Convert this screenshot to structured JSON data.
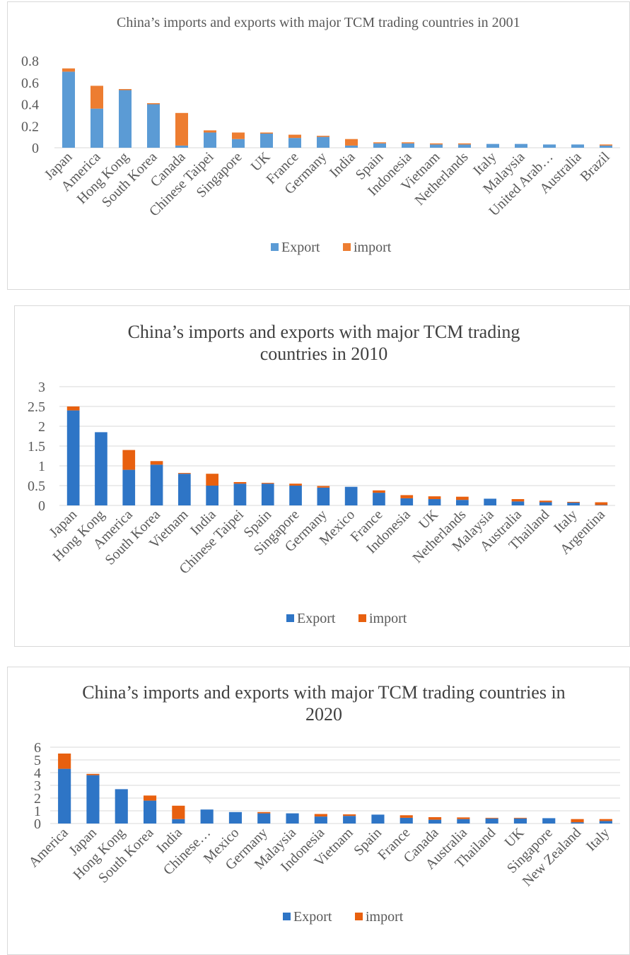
{
  "chart_data": [
    {
      "type": "bar",
      "stacked": true,
      "title": "China’s imports and exports with major TCM trading countries in 2001",
      "categories": [
        "Japan",
        "America",
        "Hong Kong",
        "South Korea",
        "Canada",
        "Chinese Taipei",
        "Singapore",
        "UK",
        "France",
        "Germany",
        "India",
        "Spain",
        "Indonesia",
        "Vietnam",
        "Netherlands",
        "Italy",
        "Malaysia",
        "United Arab…",
        "Australia",
        "Brazil"
      ],
      "series": [
        {
          "name": "Export",
          "color": "#5b9bd5",
          "values": [
            0.7,
            0.36,
            0.53,
            0.4,
            0.02,
            0.14,
            0.08,
            0.13,
            0.09,
            0.1,
            0.02,
            0.04,
            0.04,
            0.03,
            0.03,
            0.035,
            0.035,
            0.03,
            0.03,
            0.02
          ]
        },
        {
          "name": "import",
          "color": "#ed7d31",
          "values": [
            0.03,
            0.21,
            0.01,
            0.01,
            0.3,
            0.02,
            0.06,
            0.01,
            0.03,
            0.01,
            0.06,
            0.01,
            0.01,
            0.01,
            0.01,
            0,
            0,
            0,
            0,
            0.01
          ]
        }
      ],
      "ylim": [
        0,
        0.8
      ],
      "yticks": [
        0,
        0.2,
        0.4,
        0.6,
        0.8
      ],
      "grid": false,
      "legend": "bottom"
    },
    {
      "type": "bar",
      "stacked": true,
      "title": "China’s imports and exports with major TCM trading countries in 2010",
      "categories": [
        "Japan",
        "Hong Kong",
        "America",
        "South Korea",
        "Vietnam",
        "India",
        "Chinese Taipei",
        "Spain",
        "Singapore",
        "Germany",
        "Mexico",
        "France",
        "Indonesia",
        "UK",
        "Netherlands",
        "Malaysia",
        "Australia",
        "Thailand",
        "Italy",
        "Argentina"
      ],
      "series": [
        {
          "name": "Export",
          "color": "#2e75c6",
          "values": [
            2.4,
            1.85,
            0.9,
            1.03,
            0.8,
            0.5,
            0.55,
            0.55,
            0.5,
            0.45,
            0.47,
            0.32,
            0.18,
            0.16,
            0.14,
            0.17,
            0.1,
            0.08,
            0.07,
            0.01
          ]
        },
        {
          "name": "import",
          "color": "#e8600f",
          "values": [
            0.1,
            0,
            0.5,
            0.09,
            0.02,
            0.3,
            0.04,
            0.02,
            0.05,
            0.04,
            0,
            0.06,
            0.08,
            0.07,
            0.08,
            0,
            0.06,
            0.04,
            0.02,
            0.07
          ]
        }
      ],
      "ylim": [
        0,
        3
      ],
      "yticks": [
        0,
        0.5,
        1,
        1.5,
        2,
        2.5,
        3
      ],
      "grid": true,
      "legend": "bottom"
    },
    {
      "type": "bar",
      "stacked": true,
      "title": "China’s imports and exports with major TCM trading countries in 2020",
      "categories": [
        "America",
        "Japan",
        "Hong Kong",
        "South Korea",
        "India",
        "Chinese…",
        "Mexico",
        "Germany",
        "Malaysia",
        "Indonesia",
        "Vietnam",
        "Spain",
        "France",
        "Canada",
        "Australia",
        "Thailand",
        "UK",
        "Singapore",
        "New Zealand",
        "Italy"
      ],
      "series": [
        {
          "name": "Export",
          "color": "#2e75c6",
          "values": [
            4.3,
            3.8,
            2.7,
            1.8,
            0.35,
            1.1,
            0.9,
            0.8,
            0.8,
            0.55,
            0.6,
            0.7,
            0.45,
            0.3,
            0.35,
            0.4,
            0.4,
            0.42,
            0.1,
            0.2
          ]
        },
        {
          "name": "import",
          "color": "#e8600f",
          "values": [
            1.2,
            0.1,
            0,
            0.4,
            1.05,
            0,
            0,
            0.1,
            0,
            0.2,
            0.12,
            0,
            0.2,
            0.2,
            0.13,
            0.05,
            0.05,
            0,
            0.25,
            0.15
          ]
        }
      ],
      "ylim": [
        0,
        6
      ],
      "yticks": [
        0,
        1,
        2,
        3,
        4,
        5,
        6
      ],
      "grid": true,
      "legend": "bottom"
    }
  ]
}
